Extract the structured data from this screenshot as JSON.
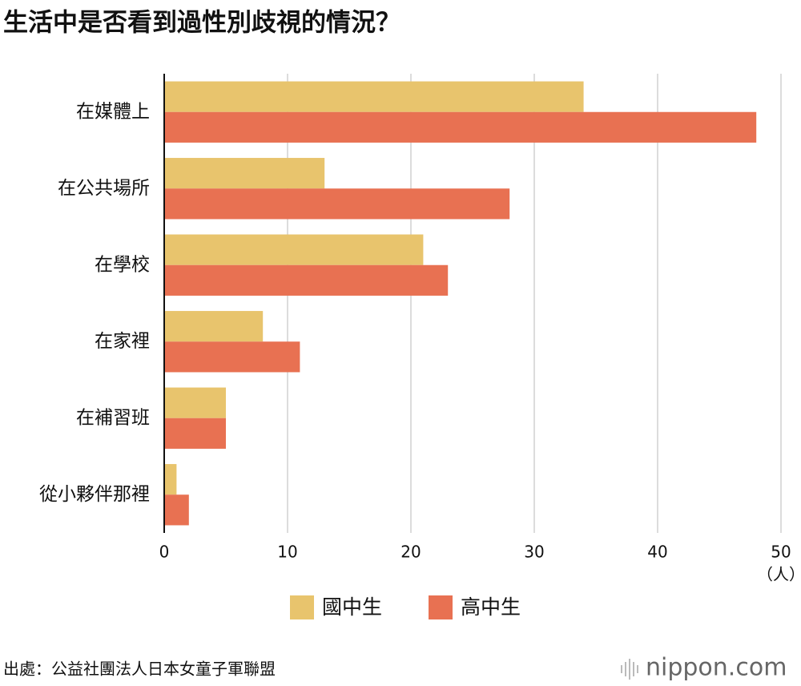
{
  "chart_data": {
    "type": "barh",
    "title": "生活中是否看到過性別歧視的情況？",
    "categories": [
      "在媒體上",
      "在公共場所",
      "在學校",
      "在家裡",
      "在補習班",
      "從小夥伴那裡"
    ],
    "series": [
      {
        "name": "國中生",
        "color": "#e8c46d",
        "values": [
          34,
          13,
          21,
          8,
          5,
          1
        ]
      },
      {
        "name": "高中生",
        "color": "#e87152",
        "values": [
          48,
          28,
          23,
          11,
          5,
          2
        ]
      }
    ],
    "xlim": [
      0,
      50
    ],
    "xticks": [
      0,
      10,
      20,
      30,
      40,
      50
    ],
    "xlabel": "（人）",
    "grid": true,
    "legend": "bottom",
    "source": "出處：公益社團法人日本女童子軍聯盟",
    "brand": "nippon.com"
  }
}
